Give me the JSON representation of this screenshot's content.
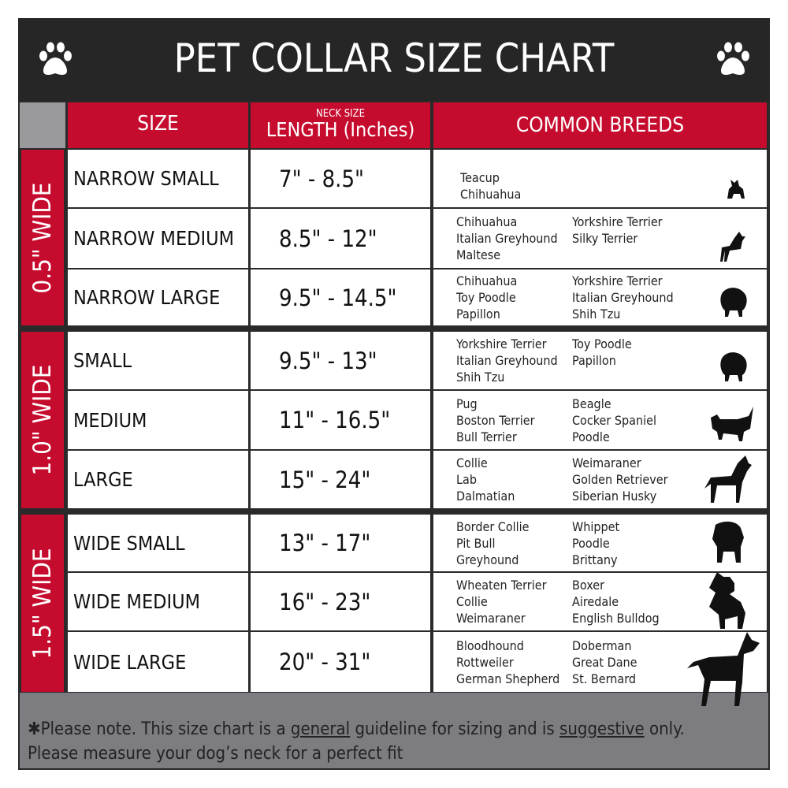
{
  "title": "PET COLLAR SIZE CHART",
  "columns": {
    "size": "SIZE",
    "length_sup": "NECK SIZE",
    "length": "LENGTH (Inches)",
    "breeds": "COMMON BREEDS"
  },
  "groups": [
    {
      "label": "0.5\" WIDE"
    },
    {
      "label": "1.0\" WIDE"
    },
    {
      "label": "1.5\" WIDE"
    }
  ],
  "rows": [
    {
      "size": "NARROW SMALL",
      "length": "7\" - 8.5\"",
      "breeds_left": [
        "Teacup",
        "Chihuahua"
      ],
      "breeds_right": []
    },
    {
      "size": "NARROW MEDIUM",
      "length": "8.5\" - 12\"",
      "breeds_left": [
        "Chihuahua",
        "Italian Greyhound",
        "Maltese"
      ],
      "breeds_right": [
        "Yorkshire Terrier",
        "Silky Terrier"
      ]
    },
    {
      "size": "NARROW LARGE",
      "length": "9.5\" - 14.5\"",
      "breeds_left": [
        "Chihuahua",
        "Toy Poodle",
        "Papillon"
      ],
      "breeds_right": [
        "Yorkshire Terrier",
        "Italian Greyhound",
        "Shih Tzu"
      ]
    },
    {
      "size": "SMALL",
      "length": "9.5\" - 13\"",
      "breeds_left": [
        "Yorkshire Terrier",
        "Italian Greyhound",
        "Shih Tzu"
      ],
      "breeds_right": [
        "Toy Poodle",
        "Papillon"
      ]
    },
    {
      "size": "MEDIUM",
      "length": "11\" - 16.5\"",
      "breeds_left": [
        "Pug",
        "Boston Terrier",
        "Bull Terrier"
      ],
      "breeds_right": [
        "Beagle",
        "Cocker Spaniel",
        "Poodle"
      ]
    },
    {
      "size": "LARGE",
      "length": "15\" - 24\"",
      "breeds_left": [
        "Collie",
        "Lab",
        "Dalmatian"
      ],
      "breeds_right": [
        "Weimaraner",
        "Golden Retriever",
        "Siberian Husky"
      ]
    },
    {
      "size": "WIDE SMALL",
      "length": "13\" - 17\"",
      "breeds_left": [
        "Border Collie",
        "Pit Bull",
        "Greyhound"
      ],
      "breeds_right": [
        "Whippet",
        "Poodle",
        "Brittany"
      ]
    },
    {
      "size": "WIDE MEDIUM",
      "length": "16\" - 23\"",
      "breeds_left": [
        "Wheaten Terrier",
        "Collie",
        "Weimaraner"
      ],
      "breeds_right": [
        "Boxer",
        "Airedale",
        "English Bulldog"
      ]
    },
    {
      "size": "WIDE LARGE",
      "length": "20\" - 31\"",
      "breeds_left": [
        "Bloodhound",
        "Rottweiler",
        "German Shepherd"
      ],
      "breeds_right": [
        "Doberman",
        "Great Dane",
        "St. Bernard"
      ]
    }
  ],
  "footer": {
    "prefix": "✱Please note. This size chart is a ",
    "general": "general",
    "mid": " guideline for sizing and is ",
    "suggestive": "suggestive",
    "end": " only.",
    "line2": "Please measure your dog’s neck for a perfect fit"
  },
  "colors": {
    "red": "#c60c2e",
    "dark": "#262626",
    "gray": "#7d7d81"
  },
  "icons": [
    "paw-icon",
    "dog-silhouette-icon"
  ]
}
